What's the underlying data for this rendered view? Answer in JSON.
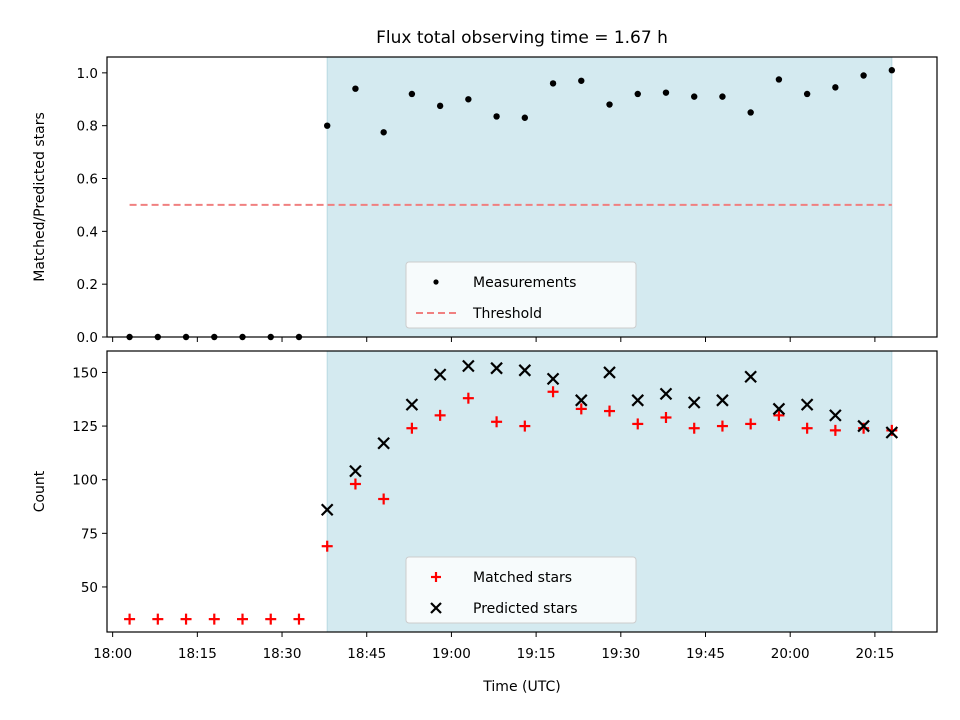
{
  "chart_data": {
    "title": "Flux total observing time = 1.67 h",
    "xlabel": "Time (UTC)",
    "x_ticks": [
      "18:00",
      "18:15",
      "18:30",
      "18:45",
      "19:00",
      "19:15",
      "19:30",
      "19:45",
      "20:00",
      "20:15"
    ],
    "x_range": [
      "17:59",
      "20:26"
    ],
    "shaded_interval": [
      "18:38",
      "20:18"
    ],
    "shade_color": "#d4eaf0",
    "times": [
      "18:03",
      "18:08",
      "18:13",
      "18:18",
      "18:23",
      "18:28",
      "18:33",
      "18:38",
      "18:43",
      "18:48",
      "18:53",
      "18:58",
      "19:03",
      "19:08",
      "19:13",
      "19:18",
      "19:23",
      "19:28",
      "19:33",
      "19:38",
      "19:43",
      "19:48",
      "19:53",
      "19:58",
      "20:03",
      "20:08",
      "20:13",
      "20:18"
    ],
    "panels": [
      {
        "type": "scatter",
        "ylabel": "Matched/Predicted stars",
        "ylim": [
          0,
          1.06
        ],
        "y_ticks": [
          "0.0",
          "0.2",
          "0.4",
          "0.6",
          "0.8",
          "1.0"
        ],
        "series": [
          {
            "name": "Measurements",
            "marker": "dot",
            "color": "#000000",
            "values": [
              0,
              0,
              0,
              0,
              0,
              0,
              0,
              0.8,
              0.94,
              0.775,
              0.92,
              0.875,
              0.9,
              0.835,
              0.83,
              0.96,
              0.97,
              0.88,
              0.92,
              0.925,
              0.91,
              0.91,
              0.85,
              0.975,
              0.92,
              0.945,
              0.99,
              1.01
            ]
          },
          {
            "name": "Threshold",
            "marker": "dashed-line",
            "color": "#f08080",
            "y": 0.5,
            "x_range": [
              "18:03",
              "20:18"
            ]
          }
        ],
        "legend": "lower-center"
      },
      {
        "type": "scatter",
        "ylabel": "Count",
        "ylim": [
          29,
          160
        ],
        "y_ticks": [
          "50",
          "75",
          "100",
          "125",
          "150"
        ],
        "series": [
          {
            "name": "Matched stars",
            "marker": "plus",
            "color": "#ff0000",
            "values": [
              35,
              35,
              35,
              35,
              35,
              35,
              35,
              69,
              98,
              91,
              124,
              130,
              138,
              127,
              125,
              141,
              133,
              132,
              126,
              129,
              124,
              125,
              126,
              130,
              124,
              123,
              124,
              123
            ]
          },
          {
            "name": "Predicted stars",
            "marker": "x",
            "color": "#000000",
            "values": [
              null,
              null,
              null,
              null,
              null,
              null,
              null,
              86,
              104,
              117,
              135,
              149,
              153,
              152,
              151,
              147,
              137,
              150,
              137,
              140,
              136,
              137,
              148,
              133,
              135,
              130,
              125,
              122
            ]
          }
        ],
        "legend": "lower-center"
      }
    ]
  }
}
